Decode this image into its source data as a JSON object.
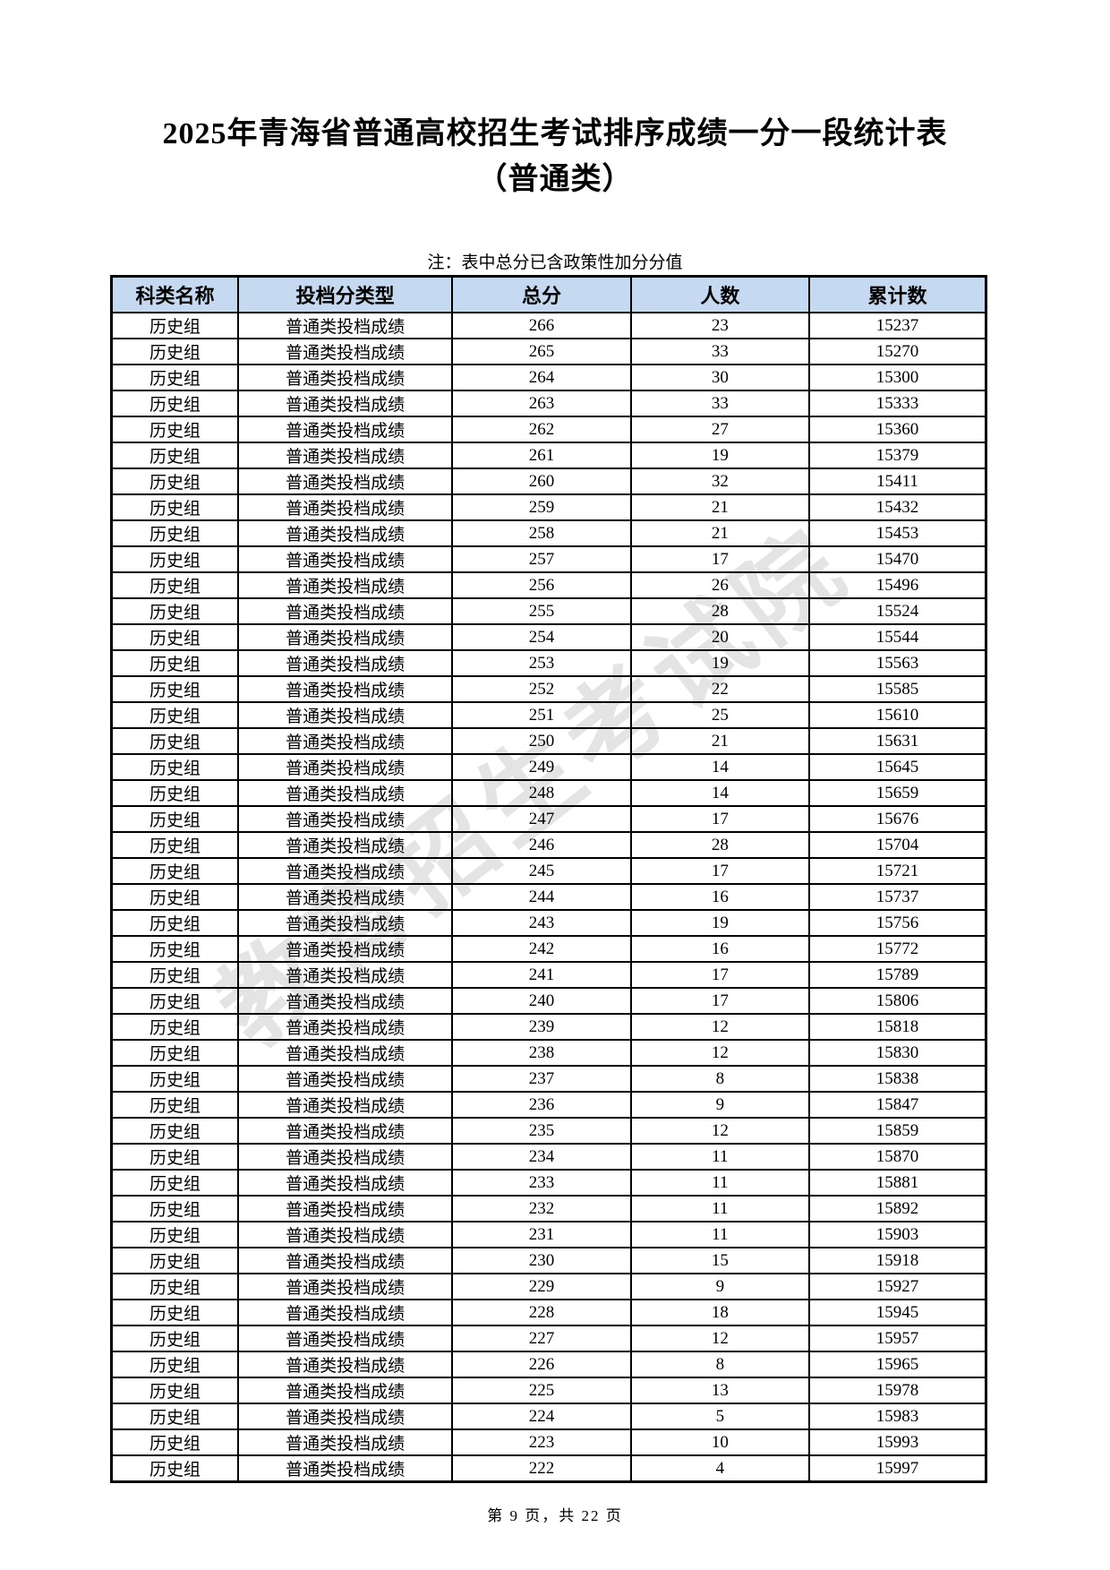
{
  "title": {
    "line1": "2025年青海省普通高校招生考试排序成绩一分一段统计表",
    "line2": "（普通类）"
  },
  "note": "注：表中总分已含政策性加分分值",
  "watermark": "教育招生考试院",
  "footer": "第 9 页，共 22 页",
  "colors": {
    "header_bg": "#c5d9f1",
    "border": "#000000",
    "watermark_gray": "#828282"
  },
  "table": {
    "columns": [
      "科类名称",
      "投档分类型",
      "总分",
      "人数",
      "累计数"
    ],
    "rows": [
      [
        "历史组",
        "普通类投档成绩",
        "266",
        "23",
        "15237"
      ],
      [
        "历史组",
        "普通类投档成绩",
        "265",
        "33",
        "15270"
      ],
      [
        "历史组",
        "普通类投档成绩",
        "264",
        "30",
        "15300"
      ],
      [
        "历史组",
        "普通类投档成绩",
        "263",
        "33",
        "15333"
      ],
      [
        "历史组",
        "普通类投档成绩",
        "262",
        "27",
        "15360"
      ],
      [
        "历史组",
        "普通类投档成绩",
        "261",
        "19",
        "15379"
      ],
      [
        "历史组",
        "普通类投档成绩",
        "260",
        "32",
        "15411"
      ],
      [
        "历史组",
        "普通类投档成绩",
        "259",
        "21",
        "15432"
      ],
      [
        "历史组",
        "普通类投档成绩",
        "258",
        "21",
        "15453"
      ],
      [
        "历史组",
        "普通类投档成绩",
        "257",
        "17",
        "15470"
      ],
      [
        "历史组",
        "普通类投档成绩",
        "256",
        "26",
        "15496"
      ],
      [
        "历史组",
        "普通类投档成绩",
        "255",
        "28",
        "15524"
      ],
      [
        "历史组",
        "普通类投档成绩",
        "254",
        "20",
        "15544"
      ],
      [
        "历史组",
        "普通类投档成绩",
        "253",
        "19",
        "15563"
      ],
      [
        "历史组",
        "普通类投档成绩",
        "252",
        "22",
        "15585"
      ],
      [
        "历史组",
        "普通类投档成绩",
        "251",
        "25",
        "15610"
      ],
      [
        "历史组",
        "普通类投档成绩",
        "250",
        "21",
        "15631"
      ],
      [
        "历史组",
        "普通类投档成绩",
        "249",
        "14",
        "15645"
      ],
      [
        "历史组",
        "普通类投档成绩",
        "248",
        "14",
        "15659"
      ],
      [
        "历史组",
        "普通类投档成绩",
        "247",
        "17",
        "15676"
      ],
      [
        "历史组",
        "普通类投档成绩",
        "246",
        "28",
        "15704"
      ],
      [
        "历史组",
        "普通类投档成绩",
        "245",
        "17",
        "15721"
      ],
      [
        "历史组",
        "普通类投档成绩",
        "244",
        "16",
        "15737"
      ],
      [
        "历史组",
        "普通类投档成绩",
        "243",
        "19",
        "15756"
      ],
      [
        "历史组",
        "普通类投档成绩",
        "242",
        "16",
        "15772"
      ],
      [
        "历史组",
        "普通类投档成绩",
        "241",
        "17",
        "15789"
      ],
      [
        "历史组",
        "普通类投档成绩",
        "240",
        "17",
        "15806"
      ],
      [
        "历史组",
        "普通类投档成绩",
        "239",
        "12",
        "15818"
      ],
      [
        "历史组",
        "普通类投档成绩",
        "238",
        "12",
        "15830"
      ],
      [
        "历史组",
        "普通类投档成绩",
        "237",
        "8",
        "15838"
      ],
      [
        "历史组",
        "普通类投档成绩",
        "236",
        "9",
        "15847"
      ],
      [
        "历史组",
        "普通类投档成绩",
        "235",
        "12",
        "15859"
      ],
      [
        "历史组",
        "普通类投档成绩",
        "234",
        "11",
        "15870"
      ],
      [
        "历史组",
        "普通类投档成绩",
        "233",
        "11",
        "15881"
      ],
      [
        "历史组",
        "普通类投档成绩",
        "232",
        "11",
        "15892"
      ],
      [
        "历史组",
        "普通类投档成绩",
        "231",
        "11",
        "15903"
      ],
      [
        "历史组",
        "普通类投档成绩",
        "230",
        "15",
        "15918"
      ],
      [
        "历史组",
        "普通类投档成绩",
        "229",
        "9",
        "15927"
      ],
      [
        "历史组",
        "普通类投档成绩",
        "228",
        "18",
        "15945"
      ],
      [
        "历史组",
        "普通类投档成绩",
        "227",
        "12",
        "15957"
      ],
      [
        "历史组",
        "普通类投档成绩",
        "226",
        "8",
        "15965"
      ],
      [
        "历史组",
        "普通类投档成绩",
        "225",
        "13",
        "15978"
      ],
      [
        "历史组",
        "普通类投档成绩",
        "224",
        "5",
        "15983"
      ],
      [
        "历史组",
        "普通类投档成绩",
        "223",
        "10",
        "15993"
      ],
      [
        "历史组",
        "普通类投档成绩",
        "222",
        "4",
        "15997"
      ]
    ]
  }
}
